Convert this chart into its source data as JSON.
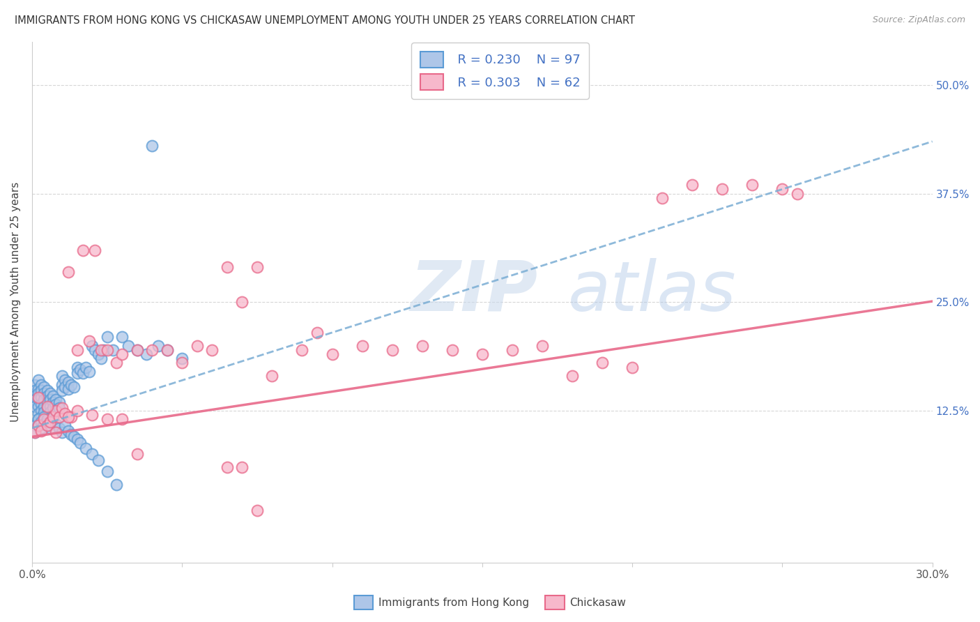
{
  "title": "IMMIGRANTS FROM HONG KONG VS CHICKASAW UNEMPLOYMENT AMONG YOUTH UNDER 25 YEARS CORRELATION CHART",
  "source": "Source: ZipAtlas.com",
  "ylabel": "Unemployment Among Youth under 25 years",
  "xlim": [
    0.0,
    0.3
  ],
  "ylim": [
    -0.05,
    0.55
  ],
  "watermark": "ZIPatlas",
  "legend_r1": "R = 0.230",
  "legend_n1": "N = 97",
  "legend_r2": "R = 0.303",
  "legend_n2": "N = 62",
  "color_hk_fill": "#aec6e8",
  "color_hk_edge": "#5b9bd5",
  "color_ch_fill": "#f7b8cb",
  "color_ch_edge": "#e8698a",
  "color_hk_line": "#7aadd4",
  "color_ch_line": "#e8698a",
  "color_blue_text": "#4472C4",
  "hk_trend_intercept": 0.105,
  "hk_trend_slope": 1.1,
  "ch_trend_intercept": 0.095,
  "ch_trend_slope": 0.52,
  "hk_x": [
    0.001,
    0.001,
    0.001,
    0.001,
    0.001,
    0.002,
    0.002,
    0.002,
    0.002,
    0.002,
    0.002,
    0.002,
    0.002,
    0.003,
    0.003,
    0.003,
    0.003,
    0.003,
    0.003,
    0.004,
    0.004,
    0.004,
    0.004,
    0.004,
    0.005,
    0.005,
    0.005,
    0.005,
    0.006,
    0.006,
    0.006,
    0.006,
    0.007,
    0.007,
    0.007,
    0.008,
    0.008,
    0.008,
    0.009,
    0.009,
    0.01,
    0.01,
    0.01,
    0.011,
    0.011,
    0.012,
    0.012,
    0.013,
    0.014,
    0.015,
    0.015,
    0.016,
    0.017,
    0.018,
    0.019,
    0.02,
    0.021,
    0.022,
    0.023,
    0.024,
    0.025,
    0.027,
    0.03,
    0.032,
    0.035,
    0.038,
    0.04,
    0.042,
    0.045,
    0.05,
    0.001,
    0.001,
    0.002,
    0.002,
    0.003,
    0.003,
    0.004,
    0.004,
    0.005,
    0.005,
    0.006,
    0.006,
    0.007,
    0.008,
    0.009,
    0.01,
    0.011,
    0.012,
    0.013,
    0.014,
    0.015,
    0.016,
    0.018,
    0.02,
    0.022,
    0.025,
    0.028
  ],
  "hk_y": [
    0.155,
    0.148,
    0.142,
    0.138,
    0.13,
    0.16,
    0.15,
    0.145,
    0.138,
    0.13,
    0.122,
    0.115,
    0.108,
    0.155,
    0.148,
    0.14,
    0.132,
    0.125,
    0.118,
    0.152,
    0.145,
    0.138,
    0.13,
    0.123,
    0.148,
    0.142,
    0.135,
    0.128,
    0.145,
    0.138,
    0.13,
    0.123,
    0.142,
    0.135,
    0.128,
    0.138,
    0.132,
    0.125,
    0.135,
    0.128,
    0.165,
    0.155,
    0.148,
    0.16,
    0.152,
    0.158,
    0.15,
    0.155,
    0.152,
    0.175,
    0.168,
    0.172,
    0.168,
    0.175,
    0.17,
    0.2,
    0.195,
    0.19,
    0.185,
    0.195,
    0.21,
    0.195,
    0.21,
    0.2,
    0.195,
    0.19,
    0.43,
    0.2,
    0.195,
    0.185,
    0.108,
    0.1,
    0.115,
    0.108,
    0.112,
    0.105,
    0.118,
    0.11,
    0.115,
    0.108,
    0.112,
    0.105,
    0.118,
    0.11,
    0.105,
    0.1,
    0.108,
    0.102,
    0.098,
    0.095,
    0.092,
    0.088,
    0.082,
    0.075,
    0.068,
    0.055,
    0.04
  ],
  "ch_x": [
    0.001,
    0.002,
    0.003,
    0.004,
    0.005,
    0.006,
    0.007,
    0.008,
    0.009,
    0.01,
    0.011,
    0.012,
    0.013,
    0.015,
    0.017,
    0.019,
    0.021,
    0.023,
    0.025,
    0.028,
    0.03,
    0.035,
    0.04,
    0.045,
    0.05,
    0.055,
    0.06,
    0.065,
    0.07,
    0.075,
    0.08,
    0.09,
    0.095,
    0.1,
    0.11,
    0.12,
    0.13,
    0.14,
    0.15,
    0.16,
    0.17,
    0.18,
    0.19,
    0.2,
    0.21,
    0.22,
    0.23,
    0.24,
    0.25,
    0.255,
    0.002,
    0.005,
    0.008,
    0.012,
    0.015,
    0.02,
    0.025,
    0.03,
    0.035,
    0.065,
    0.07,
    0.075
  ],
  "ch_y": [
    0.1,
    0.108,
    0.102,
    0.115,
    0.108,
    0.112,
    0.118,
    0.125,
    0.118,
    0.128,
    0.122,
    0.285,
    0.118,
    0.195,
    0.31,
    0.205,
    0.31,
    0.195,
    0.195,
    0.18,
    0.19,
    0.195,
    0.195,
    0.195,
    0.18,
    0.2,
    0.195,
    0.29,
    0.25,
    0.29,
    0.165,
    0.195,
    0.215,
    0.19,
    0.2,
    0.195,
    0.2,
    0.195,
    0.19,
    0.195,
    0.2,
    0.165,
    0.18,
    0.175,
    0.37,
    0.385,
    0.38,
    0.385,
    0.38,
    0.375,
    0.14,
    0.13,
    0.1,
    0.118,
    0.125,
    0.12,
    0.115,
    0.115,
    0.075,
    0.06,
    0.06,
    0.01
  ]
}
